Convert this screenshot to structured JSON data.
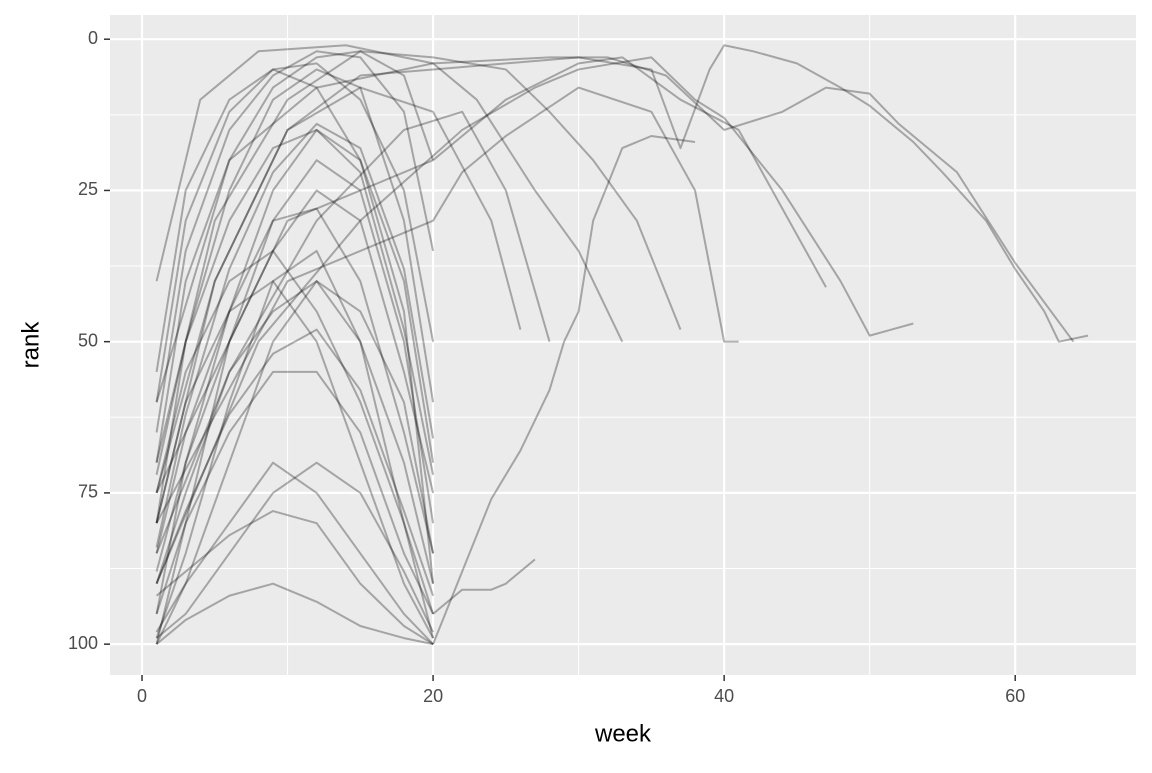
{
  "chart_data": {
    "type": "line",
    "x_label": "week",
    "y_label": "rank",
    "xlim": [
      -2.2,
      68.3
    ],
    "ylim": [
      -4,
      105.1
    ],
    "y_reversed": true,
    "xticks": [
      0,
      20,
      40,
      60
    ],
    "yticks": [
      0,
      25,
      50,
      75,
      100
    ],
    "grid": true,
    "color": "#000000",
    "alpha": 0.3,
    "series": [
      {
        "x": [
          1,
          5,
          10,
          15,
          20,
          25,
          30,
          35,
          37,
          39,
          40,
          42,
          45,
          48,
          50,
          53,
          55,
          58,
          60,
          62,
          63,
          65
        ],
        "values": [
          80,
          40,
          15,
          6,
          5,
          4,
          3,
          5,
          18,
          5,
          1,
          2,
          4,
          8,
          11,
          17,
          22,
          30,
          38,
          45,
          50,
          49
        ]
      },
      {
        "x": [
          1,
          6,
          12,
          20,
          28,
          32,
          36,
          40,
          44,
          47,
          50,
          52,
          56,
          60,
          64
        ],
        "values": [
          60,
          20,
          8,
          4,
          3,
          3,
          6,
          15,
          12,
          8,
          9,
          14,
          22,
          37,
          50
        ]
      },
      {
        "x": [
          1,
          8,
          15,
          22,
          27,
          30,
          35,
          38,
          40,
          44,
          48,
          50,
          53
        ],
        "values": [
          90,
          50,
          30,
          15,
          8,
          5,
          3,
          10,
          13,
          25,
          40,
          49,
          47
        ]
      },
      {
        "x": [
          1,
          10,
          20,
          25,
          30,
          33,
          37,
          41,
          44,
          47
        ],
        "values": [
          75,
          30,
          20,
          10,
          4,
          3,
          10,
          15,
          28,
          41
        ]
      },
      {
        "x": [
          1,
          10,
          20,
          22,
          25,
          30,
          35,
          38,
          40,
          41
        ],
        "values": [
          80,
          40,
          30,
          22,
          16,
          8,
          12,
          25,
          50,
          50
        ]
      },
      {
        "x": [
          1,
          5,
          10,
          15,
          20,
          25,
          28,
          31,
          34,
          37
        ],
        "values": [
          70,
          30,
          10,
          2,
          3,
          5,
          12,
          20,
          30,
          48
        ]
      },
      {
        "x": [
          1,
          4,
          8,
          14,
          20,
          23,
          27,
          30,
          33
        ],
        "values": [
          40,
          10,
          2,
          1,
          4,
          10,
          25,
          35,
          50
        ]
      },
      {
        "x": [
          20,
          22,
          24,
          26,
          28,
          29,
          30,
          31,
          33,
          35,
          38
        ],
        "values": [
          100,
          88,
          76,
          68,
          58,
          50,
          45,
          30,
          18,
          16,
          17
        ]
      },
      {
        "x": [
          20,
          22,
          24,
          25,
          27
        ],
        "values": [
          95,
          91,
          91,
          90,
          86
        ]
      },
      {
        "x": [
          1,
          5,
          10,
          15,
          20,
          24,
          26
        ],
        "values": [
          75,
          40,
          15,
          8,
          12,
          30,
          48
        ]
      },
      {
        "x": [
          1,
          6,
          12,
          18,
          22,
          25,
          28
        ],
        "values": [
          85,
          55,
          30,
          15,
          12,
          25,
          50
        ]
      },
      {
        "x": [
          1,
          3,
          6,
          9,
          12,
          15,
          18,
          20
        ],
        "values": [
          99,
          85,
          60,
          40,
          35,
          50,
          80,
          99
        ]
      },
      {
        "x": [
          1,
          3,
          6,
          9,
          12,
          15,
          18,
          20
        ],
        "values": [
          95,
          70,
          45,
          25,
          15,
          20,
          45,
          90
        ]
      },
      {
        "x": [
          1,
          3,
          6,
          9,
          12,
          15,
          18,
          20
        ],
        "values": [
          80,
          50,
          25,
          10,
          5,
          8,
          30,
          60
        ]
      },
      {
        "x": [
          1,
          3,
          6,
          9,
          12,
          15,
          18,
          20
        ],
        "values": [
          100,
          90,
          80,
          70,
          75,
          85,
          95,
          100
        ]
      },
      {
        "x": [
          1,
          3,
          6,
          9,
          12,
          15,
          18,
          20
        ],
        "values": [
          70,
          40,
          20,
          8,
          3,
          2,
          6,
          20
        ]
      },
      {
        "x": [
          1,
          3,
          6,
          9,
          12,
          15,
          18,
          20
        ],
        "values": [
          90,
          75,
          55,
          45,
          40,
          50,
          70,
          90
        ]
      },
      {
        "x": [
          1,
          3,
          6,
          9,
          12,
          15,
          18,
          20
        ],
        "values": [
          60,
          30,
          12,
          5,
          4,
          10,
          25,
          50
        ]
      },
      {
        "x": [
          1,
          3,
          6,
          9,
          12,
          15,
          18,
          20
        ],
        "values": [
          99,
          95,
          85,
          75,
          70,
          75,
          88,
          98
        ]
      },
      {
        "x": [
          1,
          3,
          6,
          9,
          12,
          15,
          18,
          20
        ],
        "values": [
          85,
          65,
          45,
          30,
          28,
          40,
          65,
          85
        ]
      },
      {
        "x": [
          1,
          3,
          6,
          9,
          12,
          15,
          18,
          20
        ],
        "values": [
          75,
          55,
          40,
          35,
          45,
          60,
          80,
          95
        ]
      },
      {
        "x": [
          1,
          3,
          6,
          9,
          12,
          15,
          18,
          20
        ],
        "values": [
          100,
          80,
          50,
          30,
          20,
          25,
          50,
          80
        ]
      },
      {
        "x": [
          1,
          3,
          6,
          9,
          12,
          15,
          18,
          20
        ],
        "values": [
          92,
          88,
          82,
          78,
          80,
          90,
          97,
          100
        ]
      },
      {
        "x": [
          1,
          3,
          6,
          9,
          12,
          15,
          18,
          20
        ],
        "values": [
          65,
          35,
          15,
          6,
          2,
          3,
          12,
          35
        ]
      },
      {
        "x": [
          1,
          3,
          6,
          9,
          12,
          15,
          18,
          20
        ],
        "values": [
          88,
          70,
          50,
          35,
          25,
          30,
          55,
          75
        ]
      },
      {
        "x": [
          1,
          3,
          6,
          9,
          12,
          15,
          18,
          20
        ],
        "values": [
          98,
          90,
          70,
          50,
          40,
          45,
          60,
          85
        ]
      },
      {
        "x": [
          1,
          3,
          6,
          9,
          12,
          15,
          18,
          20
        ],
        "values": [
          55,
          25,
          10,
          5,
          8,
          20,
          40,
          70
        ]
      },
      {
        "x": [
          1,
          3,
          6,
          9,
          12,
          15,
          18,
          20
        ],
        "values": [
          80,
          60,
          45,
          40,
          50,
          70,
          90,
          99
        ]
      },
      {
        "x": [
          1,
          3,
          6,
          9,
          12,
          15,
          18,
          20
        ],
        "values": [
          95,
          80,
          65,
          55,
          55,
          65,
          85,
          95
        ]
      },
      {
        "x": [
          1,
          3,
          6,
          9,
          12,
          15,
          18,
          20
        ],
        "values": [
          72,
          50,
          30,
          18,
          15,
          22,
          48,
          72
        ]
      },
      {
        "x": [
          1,
          3,
          6,
          9,
          12,
          15,
          18,
          20
        ],
        "values": [
          100,
          96,
          92,
          90,
          93,
          97,
          99,
          100
        ]
      },
      {
        "x": [
          1,
          3,
          6,
          9,
          12,
          15,
          18,
          20
        ],
        "values": [
          84,
          62,
          38,
          22,
          14,
          18,
          38,
          66
        ]
      },
      {
        "x": [
          1,
          3,
          6,
          9,
          12,
          15,
          18,
          20
        ],
        "values": [
          90,
          78,
          62,
          52,
          48,
          58,
          78,
          92
        ]
      }
    ]
  }
}
